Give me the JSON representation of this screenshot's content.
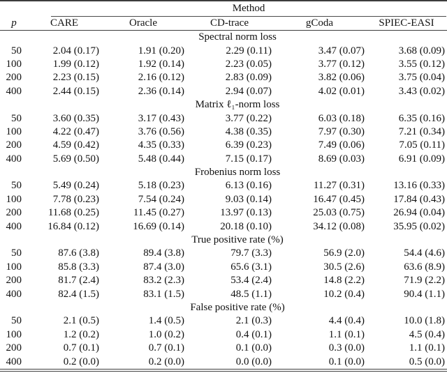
{
  "table": {
    "method_label": "Method",
    "col_p_label": "p",
    "columns": [
      "CARE",
      "Oracle",
      "CD-trace",
      "gCoda",
      "SPIEC-EASI"
    ],
    "sections": [
      {
        "title": "Spectral norm loss",
        "rows": [
          {
            "p": "50",
            "values": [
              "2.04 (0.17)",
              "1.91 (0.20)",
              "2.29 (0.11)",
              "3.47 (0.07)",
              "3.68 (0.09)"
            ]
          },
          {
            "p": "100",
            "values": [
              "1.99 (0.12)",
              "1.92 (0.14)",
              "2.23 (0.05)",
              "3.77 (0.12)",
              "3.55 (0.12)"
            ]
          },
          {
            "p": "200",
            "values": [
              "2.23 (0.15)",
              "2.16 (0.12)",
              "2.83 (0.09)",
              "3.82 (0.06)",
              "3.75 (0.04)"
            ]
          },
          {
            "p": "400",
            "values": [
              "2.44 (0.15)",
              "2.36 (0.14)",
              "2.94 (0.07)",
              "4.02 (0.01)",
              "3.43 (0.02)"
            ]
          }
        ]
      },
      {
        "title": "Matrix ℓ₁-norm loss",
        "rows": [
          {
            "p": "50",
            "values": [
              "3.60 (0.35)",
              "3.17 (0.43)",
              "3.77 (0.22)",
              "6.03 (0.18)",
              "6.35 (0.16)"
            ]
          },
          {
            "p": "100",
            "values": [
              "4.22 (0.47)",
              "3.76 (0.56)",
              "4.38 (0.35)",
              "7.97 (0.30)",
              "7.21 (0.34)"
            ]
          },
          {
            "p": "200",
            "values": [
              "4.59 (0.42)",
              "4.35 (0.33)",
              "6.39 (0.23)",
              "7.49 (0.06)",
              "7.05 (0.11)"
            ]
          },
          {
            "p": "400",
            "values": [
              "5.69 (0.50)",
              "5.48 (0.44)",
              "7.15 (0.17)",
              "8.69 (0.03)",
              "6.91 (0.09)"
            ]
          }
        ]
      },
      {
        "title": "Frobenius norm loss",
        "rows": [
          {
            "p": "50",
            "values": [
              "5.49 (0.24)",
              "5.18 (0.23)",
              "6.13 (0.16)",
              "11.27 (0.31)",
              "13.16 (0.33)"
            ]
          },
          {
            "p": "100",
            "values": [
              "7.78 (0.23)",
              "7.54 (0.24)",
              "9.03 (0.14)",
              "16.47 (0.45)",
              "17.84 (0.43)"
            ]
          },
          {
            "p": "200",
            "values": [
              "11.68 (0.25)",
              "11.45 (0.27)",
              "13.97 (0.13)",
              "25.03 (0.75)",
              "26.94 (0.04)"
            ]
          },
          {
            "p": "400",
            "values": [
              "16.84 (0.12)",
              "16.69 (0.14)",
              "20.18 (0.10)",
              "34.12 (0.08)",
              "35.95 (0.02)"
            ]
          }
        ]
      },
      {
        "title": "True positive rate (%)",
        "rows": [
          {
            "p": "50",
            "values": [
              "87.6 (3.8)",
              "89.4 (3.8)",
              "79.7 (3.3)",
              "56.9 (2.0)",
              "54.4 (4.6)"
            ]
          },
          {
            "p": "100",
            "values": [
              "85.8 (3.3)",
              "87.4 (3.0)",
              "65.6 (3.1)",
              "30.5 (2.6)",
              "63.6 (8.9)"
            ]
          },
          {
            "p": "200",
            "values": [
              "81.7 (2.4)",
              "83.2 (2.3)",
              "53.4 (2.4)",
              "14.8 (2.2)",
              "71.9 (2.2)"
            ]
          },
          {
            "p": "400",
            "values": [
              "82.4 (1.5)",
              "83.1 (1.5)",
              "48.5 (1.1)",
              "10.2 (0.4)",
              "90.4 (1.1)"
            ]
          }
        ]
      },
      {
        "title": "False positive rate (%)",
        "rows": [
          {
            "p": "50",
            "values": [
              "2.1 (0.5)",
              "1.4 (0.5)",
              "2.1 (0.3)",
              "4.4 (0.4)",
              "10.0 (1.8)"
            ]
          },
          {
            "p": "100",
            "values": [
              "1.2 (0.2)",
              "1.0 (0.2)",
              "0.4 (0.1)",
              "1.1 (0.1)",
              "4.5 (0.4)"
            ]
          },
          {
            "p": "200",
            "values": [
              "0.7 (0.1)",
              "0.7 (0.1)",
              "0.1 (0.0)",
              "0.3 (0.0)",
              "1.1 (0.1)"
            ]
          },
          {
            "p": "400",
            "values": [
              "0.2 (0.0)",
              "0.2 (0.0)",
              "0.0 (0.0)",
              "0.1 (0.0)",
              "0.5 (0.0)"
            ]
          }
        ]
      }
    ]
  },
  "colors": {
    "text": "#111111",
    "rule": "#3c3c3c"
  }
}
